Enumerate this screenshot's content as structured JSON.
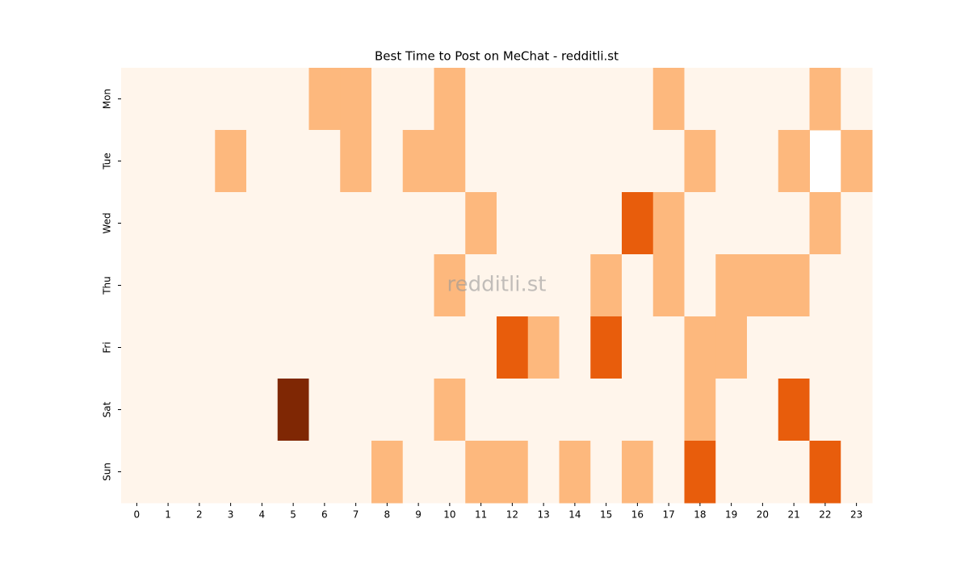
{
  "chart_data": {
    "type": "heatmap",
    "title": "Best Time to Post on MeChat - redditli.st",
    "watermark": "redditli.st",
    "x": [
      0,
      1,
      2,
      3,
      4,
      5,
      6,
      7,
      8,
      9,
      10,
      11,
      12,
      13,
      14,
      15,
      16,
      17,
      18,
      19,
      20,
      21,
      22,
      23
    ],
    "y": [
      "Mon",
      "Tue",
      "Wed",
      "Thu",
      "Fri",
      "Sat",
      "Sun"
    ],
    "values": [
      [
        0,
        0,
        0,
        0,
        0,
        0,
        1,
        1,
        0,
        0,
        1,
        0,
        0,
        0,
        0,
        0,
        0,
        1,
        0,
        0,
        0,
        0,
        1,
        0
      ],
      [
        0,
        0,
        0,
        1,
        0,
        0,
        0,
        1,
        0,
        1,
        1,
        0,
        0,
        0,
        0,
        0,
        0,
        0,
        1,
        0,
        0,
        1,
        null,
        1
      ],
      [
        0,
        0,
        0,
        0,
        0,
        0,
        0,
        0,
        0,
        0,
        0,
        1,
        0,
        0,
        0,
        0,
        2,
        1,
        0,
        0,
        0,
        0,
        1,
        0
      ],
      [
        0,
        0,
        0,
        0,
        0,
        0,
        0,
        0,
        0,
        0,
        1,
        0,
        0,
        0,
        0,
        1,
        0,
        1,
        0,
        1,
        1,
        1,
        0,
        0
      ],
      [
        0,
        0,
        0,
        0,
        0,
        0,
        0,
        0,
        0,
        0,
        0,
        0,
        2,
        1,
        0,
        2,
        0,
        0,
        1,
        1,
        0,
        0,
        0,
        0
      ],
      [
        0,
        0,
        0,
        0,
        0,
        3,
        0,
        0,
        0,
        0,
        1,
        0,
        0,
        0,
        0,
        0,
        0,
        0,
        1,
        0,
        0,
        2,
        0,
        0
      ],
      [
        0,
        0,
        0,
        0,
        0,
        0,
        0,
        0,
        1,
        0,
        0,
        1,
        1,
        0,
        1,
        0,
        1,
        0,
        2,
        0,
        0,
        0,
        2,
        0
      ]
    ],
    "colorscale": [
      "#fff5eb",
      "#fdb87d",
      "#e85d0c",
      "#7f2704"
    ]
  }
}
